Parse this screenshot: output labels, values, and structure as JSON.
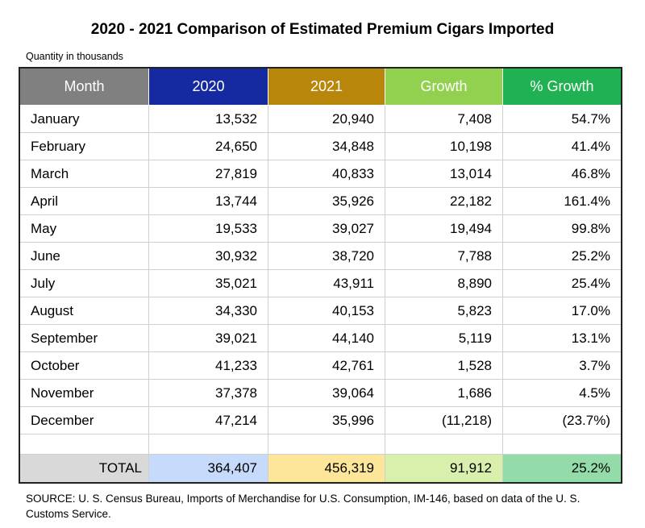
{
  "title": "2020 - 2021 Comparison of Estimated Premium Cigars Imported",
  "subtitle": "Quantity in thousands",
  "colors": {
    "month_header": "#808080",
    "y2020_header": "#1529a0",
    "y2021_header": "#b8860b",
    "growth_header": "#92d050",
    "pct_header": "#1fb152"
  },
  "chart_data": {
    "type": "table",
    "columns": [
      "Month",
      "2020",
      "2021",
      "Growth",
      "% Growth"
    ],
    "rows": [
      [
        "January",
        "13,532",
        "20,940",
        "7,408",
        "54.7%"
      ],
      [
        "February",
        "24,650",
        "34,848",
        "10,198",
        "41.4%"
      ],
      [
        "March",
        "27,819",
        "40,833",
        "13,014",
        "46.8%"
      ],
      [
        "April",
        "13,744",
        "35,926",
        "22,182",
        "161.4%"
      ],
      [
        "May",
        "19,533",
        "39,027",
        "19,494",
        "99.8%"
      ],
      [
        "June",
        "30,932",
        "38,720",
        "7,788",
        "25.2%"
      ],
      [
        "July",
        "35,021",
        "43,911",
        "8,890",
        "25.4%"
      ],
      [
        "August",
        "34,330",
        "40,153",
        "5,823",
        "17.0%"
      ],
      [
        "September",
        "39,021",
        "44,140",
        "5,119",
        "13.1%"
      ],
      [
        "October",
        "41,233",
        "42,761",
        "1,528",
        "3.7%"
      ],
      [
        "November",
        "37,378",
        "39,064",
        "1,686",
        "4.5%"
      ],
      [
        "December",
        "47,214",
        "35,996",
        "(11,218)",
        "(23.7%)"
      ]
    ],
    "total": [
      "TOTAL",
      "364,407",
      "456,319",
      "91,912",
      "25.2%"
    ]
  },
  "source": "SOURCE: U. S. Census Bureau, Imports of Merchandise for U.S. Consumption, IM-146, based on data of the U. S. Customs Service."
}
